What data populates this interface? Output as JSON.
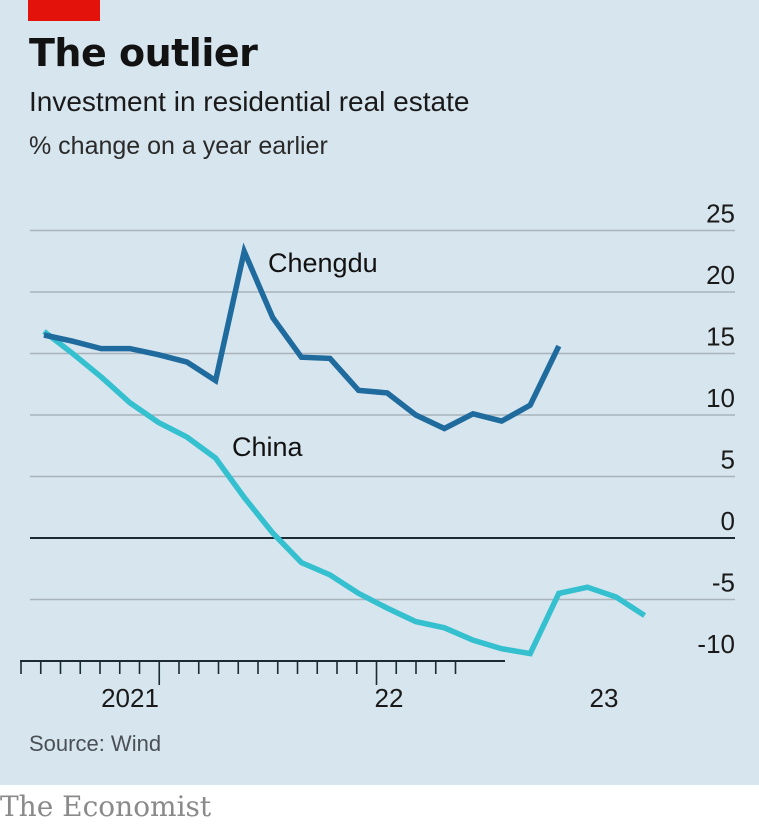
{
  "header": {
    "title": "The outlier",
    "subtitle": "Investment in residential real estate",
    "units": "% change on a year earlier"
  },
  "footer": {
    "source": "Source: Wind",
    "brand": "The Economist"
  },
  "colors": {
    "background": "#d6e5ee",
    "accent_red": "#e3120b",
    "chengdu": "#1f6b9e",
    "china": "#35c0d0"
  },
  "chart_data": {
    "type": "line",
    "title": "The outlier",
    "subtitle": "Investment in residential real estate",
    "ylabel": "% change on a year earlier",
    "ylim": [
      -10,
      25
    ],
    "yticks": [
      "25",
      "20",
      "15",
      "10",
      "5",
      "0",
      "-5",
      "-10"
    ],
    "ytick_values": [
      25,
      20,
      15,
      10,
      5,
      0,
      -5,
      -10
    ],
    "xtick_labels": [
      "2021",
      "22",
      "23"
    ],
    "grid": true,
    "legend": "inline labels",
    "series": [
      {
        "name": "Chengdu",
        "values": [
          16.5,
          16.0,
          15.4,
          15.4,
          14.9,
          14.3,
          12.8,
          23.3,
          17.9,
          14.7,
          14.6,
          12.0,
          11.8,
          10.0,
          8.9,
          10.1,
          9.5,
          10.8,
          15.6
        ]
      },
      {
        "name": "China",
        "values": [
          16.8,
          15.0,
          13.1,
          11.0,
          9.4,
          8.2,
          6.5,
          3.3,
          0.4,
          -2.0,
          -3.0,
          -4.5,
          -5.7,
          -6.8,
          -7.3,
          -8.3,
          -9.0,
          -9.4,
          -4.5,
          -4.0,
          -4.8,
          -6.3
        ]
      }
    ]
  }
}
